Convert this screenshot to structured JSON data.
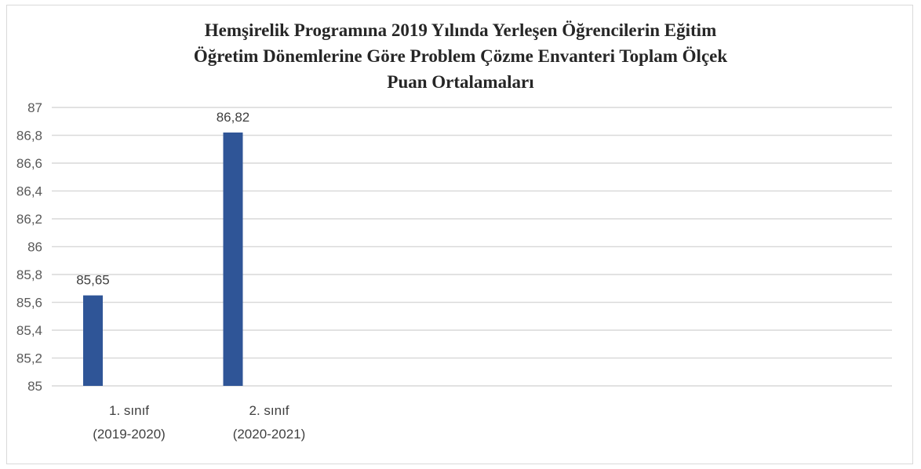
{
  "chart_data": {
    "type": "bar",
    "title_lines": [
      "Hemşirelik Programına 2019 Yılında Yerleşen Öğrencilerin Eğitim",
      "Öğretim Dönemlerine Göre Problem Çözme Envanteri Toplam Ölçek",
      "Puan Ortalamaları"
    ],
    "categories": [
      [
        "1. sınıf",
        "(2019-2020)"
      ],
      [
        "2. sınıf",
        "(2020-2021)"
      ]
    ],
    "values": [
      85.65,
      86.82
    ],
    "data_labels": [
      "85,65",
      "86,82"
    ],
    "ylim": [
      85,
      87
    ],
    "yticks": [
      85,
      85.2,
      85.4,
      85.6,
      85.8,
      86,
      86.2,
      86.4,
      86.6,
      86.8,
      87
    ],
    "ytick_labels": [
      "85",
      "85,2",
      "85,4",
      "85,6",
      "85,8",
      "86",
      "86,2",
      "86,4",
      "86,6",
      "86,8",
      "87"
    ],
    "xlabel": "",
    "ylabel": "",
    "grid": true,
    "legend": "none",
    "bar_color": "#2f5597",
    "grid_color": "#d9d9d9"
  }
}
